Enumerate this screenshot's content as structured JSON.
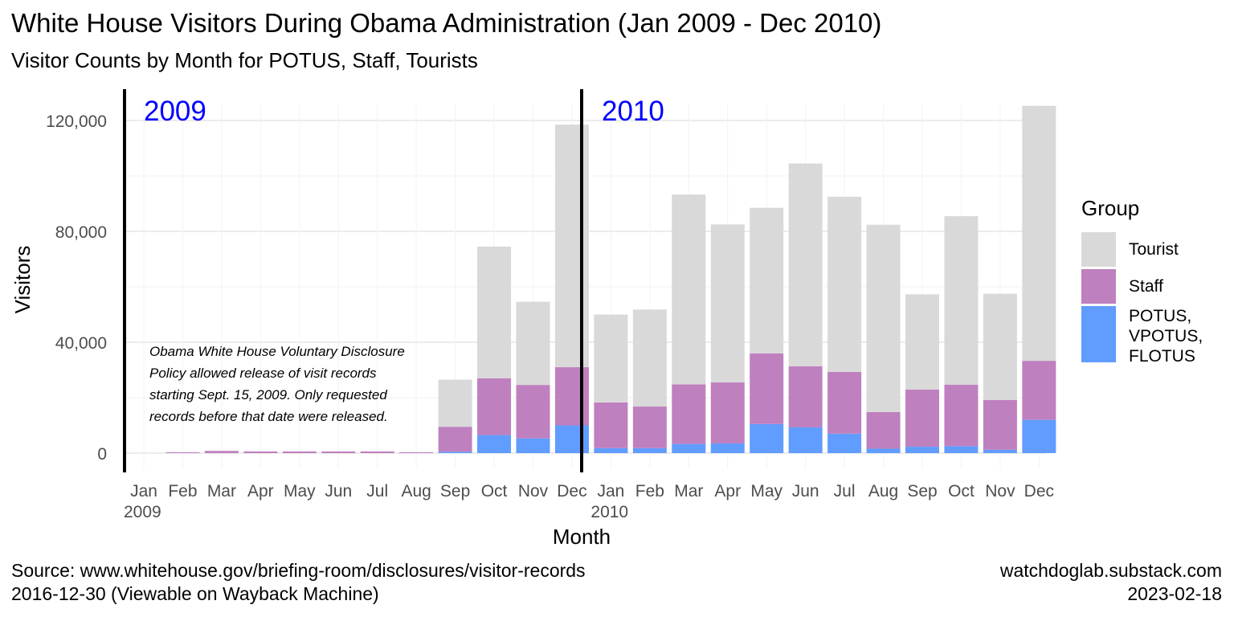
{
  "title": "White House Visitors During Obama Administration (Jan 2009 - Dec 2010)",
  "subtitle": "Visitor Counts by Month for POTUS, Staff, Tourists",
  "source_lines": [
    "Source: www.whitehouse.gov/briefing-room/disclosures/visitor-records",
    "2016-12-30 (Viewable on Wayback Machine)"
  ],
  "credit_lines": [
    "watchdoglab.substack.com",
    "2023-02-18"
  ],
  "legend": {
    "title": "Group",
    "items": [
      {
        "label_lines": [
          "Tourist"
        ],
        "color": "#d9d9d9"
      },
      {
        "label_lines": [
          "Staff"
        ],
        "color": "#bf80bf"
      },
      {
        "label_lines": [
          "POTUS,",
          "VPOTUS,",
          "FLOTUS"
        ],
        "color": "#619cff"
      }
    ]
  },
  "annotation_lines": [
    "Obama White House Voluntary Disclosure",
    "Policy allowed release of visit records",
    "starting Sept. 15, 2009.  Only requested",
    "records before that date were released."
  ],
  "chart_data": {
    "type": "bar",
    "stacked": true,
    "xlabel": "Month",
    "ylabel": "Visitors",
    "ylim": [
      0,
      125000
    ],
    "yticks": [
      0,
      40000,
      80000,
      120000
    ],
    "ytick_labels": [
      "0",
      "40,000",
      "80,000",
      "120,000"
    ],
    "grid": true,
    "categories": [
      "Jan 2009",
      "Feb",
      "Mar",
      "Apr",
      "May",
      "Jun",
      "Jul",
      "Aug",
      "Sep",
      "Oct",
      "Nov",
      "Dec",
      "Jan 2010",
      "Feb",
      "Mar",
      "Apr",
      "May",
      "Jun",
      "Jul",
      "Aug",
      "Sep",
      "Oct",
      "Nov",
      "Dec"
    ],
    "tick_labels": [
      [
        "Jan",
        "2009"
      ],
      [
        "Feb"
      ],
      [
        "Mar"
      ],
      [
        "Apr"
      ],
      [
        "May"
      ],
      [
        "Jun"
      ],
      [
        "Jul"
      ],
      [
        "Aug"
      ],
      [
        "Sep"
      ],
      [
        "Oct"
      ],
      [
        "Nov"
      ],
      [
        "Dec"
      ],
      [
        "Jan",
        "2010"
      ],
      [
        "Feb"
      ],
      [
        "Mar"
      ],
      [
        "Apr"
      ],
      [
        "May"
      ],
      [
        "Jun"
      ],
      [
        "Jul"
      ],
      [
        "Aug"
      ],
      [
        "Sep"
      ],
      [
        "Oct"
      ],
      [
        "Nov"
      ],
      [
        "Dec"
      ]
    ],
    "year_markers": [
      {
        "label": "2009",
        "color": "#0000ff"
      },
      {
        "label": "2010",
        "color": "#0000ff"
      }
    ],
    "series": [
      {
        "name": "POTUS, VPOTUS, FLOTUS",
        "color": "#619cff",
        "values": [
          0,
          0,
          0,
          0,
          0,
          0,
          0,
          0,
          500,
          6500,
          5300,
          10000,
          1800,
          1800,
          3300,
          3500,
          10500,
          9300,
          7000,
          1600,
          2300,
          2500,
          1200,
          12000
        ]
      },
      {
        "name": "Staff",
        "color": "#bf80bf",
        "values": [
          0,
          300,
          800,
          600,
          600,
          600,
          600,
          300,
          9000,
          20500,
          19300,
          21000,
          16500,
          15000,
          21500,
          22000,
          25500,
          22000,
          22300,
          13200,
          20600,
          22200,
          18000,
          21300
        ]
      },
      {
        "name": "Tourist",
        "color": "#d9d9d9",
        "values": [
          0,
          0,
          0,
          0,
          0,
          0,
          0,
          0,
          17000,
          47500,
          30000,
          87500,
          31700,
          35000,
          68500,
          57000,
          52500,
          73200,
          63200,
          67600,
          34400,
          60800,
          38300,
          92000
        ]
      }
    ]
  }
}
